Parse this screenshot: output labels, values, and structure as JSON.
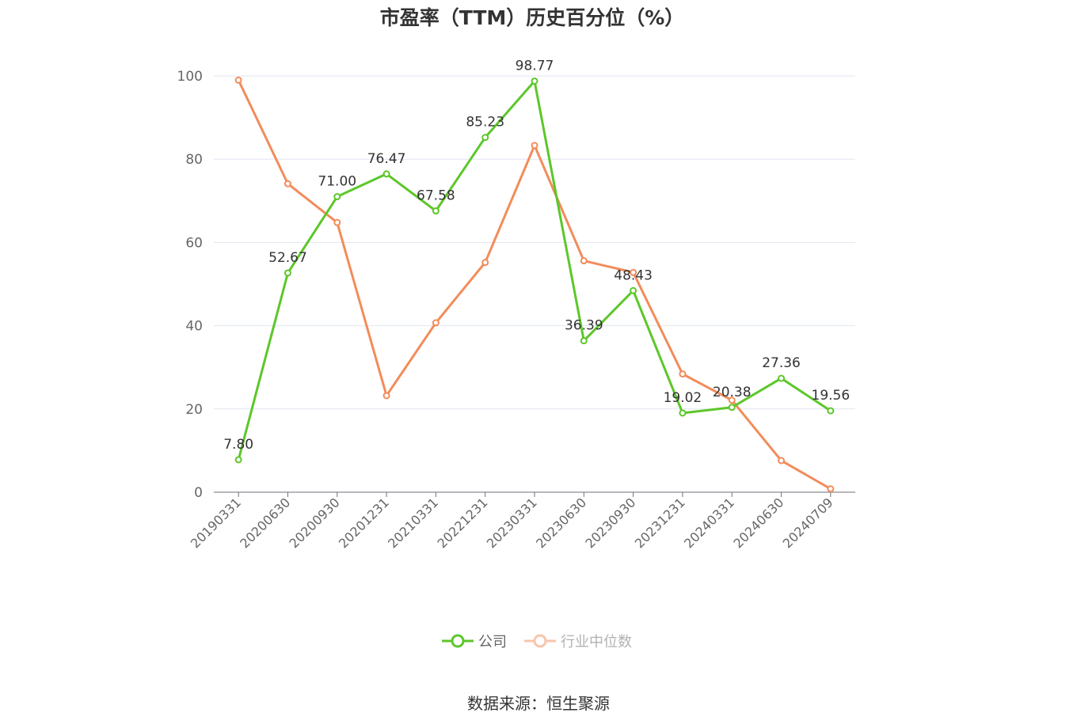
{
  "chart_data": {
    "type": "line",
    "title": "市盈率（TTM）历史百分位（%）",
    "x": [
      "20190331",
      "20200630",
      "20200930",
      "20201231",
      "20210331",
      "20221231",
      "20230331",
      "20230630",
      "20230930",
      "20231231",
      "20240331",
      "20240630",
      "20240709"
    ],
    "ylim": [
      0,
      100
    ],
    "yticks": [
      0,
      20,
      40,
      60,
      80,
      100
    ],
    "grid": true,
    "legend_position": "bottom",
    "series": [
      {
        "name": "公司",
        "color": "#5cc72a",
        "values": [
          7.8,
          52.67,
          71.0,
          76.47,
          67.58,
          85.23,
          98.77,
          36.39,
          48.43,
          19.02,
          20.38,
          27.36,
          19.56
        ],
        "labels": [
          "7.80",
          "52.67",
          "71.00",
          "76.47",
          "67.58",
          "85.23",
          "98.77",
          "36.39",
          "48.43",
          "19.02",
          "20.38",
          "27.36",
          "19.56"
        ]
      },
      {
        "name": "行业中位数",
        "color": "#f28c5a",
        "values": [
          99.0,
          74.1,
          64.8,
          23.2,
          40.7,
          55.2,
          83.3,
          55.6,
          52.8,
          28.4,
          22.1,
          7.6,
          0.8
        ]
      }
    ]
  },
  "source_text": "数据来源：恒生聚源"
}
